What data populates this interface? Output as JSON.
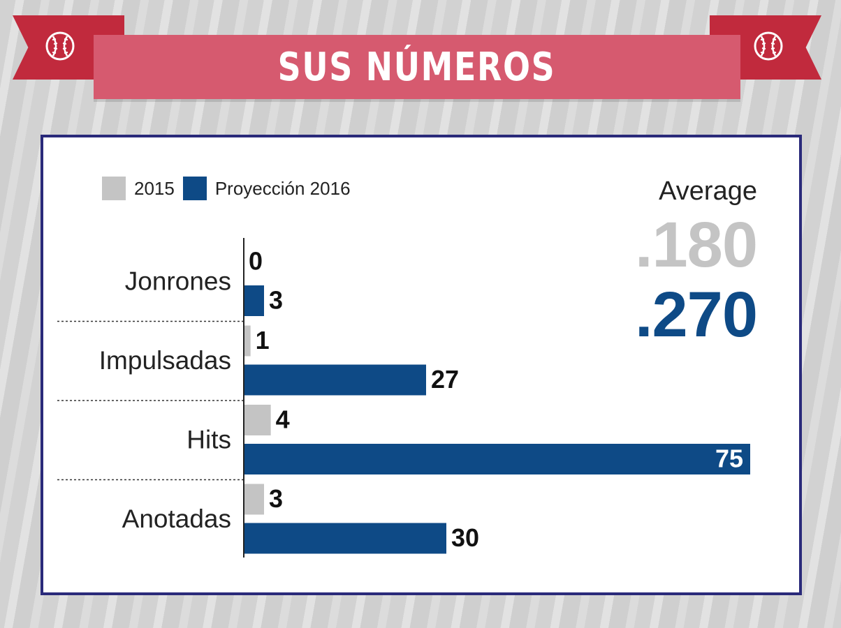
{
  "header": {
    "title": "SUS NÚMEROS"
  },
  "average": {
    "label": "Average",
    "value_2015": ".180",
    "value_2016": ".270"
  },
  "colors": {
    "series_2015": "#c4c4c4",
    "series_2016": "#0e4a86",
    "ribbon": "#c12a3d",
    "banner": "#d65a6f",
    "frame": "#2a2a7a"
  },
  "icons": {
    "left": "baseball-icon",
    "right": "baseball-icon"
  },
  "chart_data": {
    "type": "bar",
    "orientation": "horizontal",
    "categories": [
      "Jonrones",
      "Impulsadas",
      "Hits",
      "Anotadas"
    ],
    "series": [
      {
        "name": "2015",
        "values": [
          0,
          1,
          4,
          3
        ]
      },
      {
        "name": "Proyección 2016",
        "values": [
          3,
          27,
          75,
          30
        ]
      }
    ],
    "value_labels": [
      [
        "0",
        "1",
        "4",
        "3"
      ],
      [
        "3",
        "27",
        "75",
        "30"
      ]
    ],
    "xlim": [
      0,
      75
    ],
    "grid": false,
    "legend": "top-left"
  }
}
